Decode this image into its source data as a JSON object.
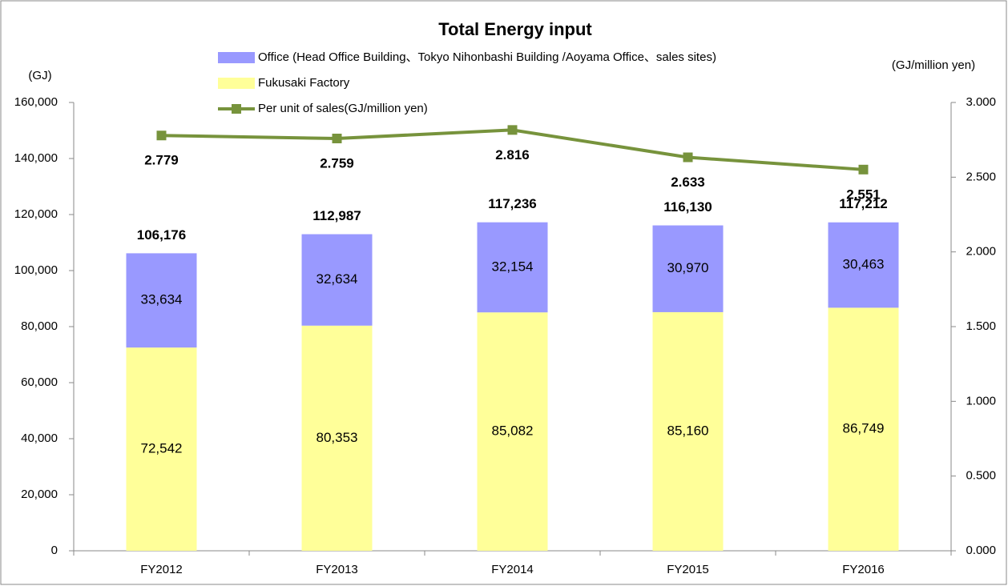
{
  "chart_data": {
    "type": "bar",
    "title": "Total  Energy  input",
    "ylabel": "(GJ)",
    "y2label": "(GJ/million yen)",
    "categories": [
      "FY2012",
      "FY2013",
      "FY2014",
      "FY2015",
      "FY2016"
    ],
    "stacked": true,
    "series": [
      {
        "name": "Office (Head Office Building、Tokyo Nihonbashi Building /Aoyama Office、sales sites)",
        "color": "#9999ff",
        "type": "bar",
        "values": [
          33634,
          32634,
          32154,
          30970,
          30463
        ],
        "value_labels": [
          "33,634",
          "32,634",
          "32,154",
          "30,970",
          "30,463"
        ]
      },
      {
        "name": "Fukusaki Factory",
        "color": "#ffff99",
        "type": "bar",
        "values": [
          72542,
          80353,
          85082,
          85160,
          86749
        ],
        "value_labels": [
          "72,542",
          "80,353",
          "85,082",
          "85,160",
          "86,749"
        ]
      },
      {
        "name": "Per unit of sales(GJ/million yen)",
        "color": "#77933c",
        "type": "line",
        "axis": "y2",
        "values": [
          2.779,
          2.759,
          2.816,
          2.633,
          2.551
        ]
      }
    ],
    "totals": {
      "values": [
        106176,
        112987,
        117236,
        116130,
        117212
      ],
      "value_labels": [
        "106,176",
        "112,987",
        "117,236",
        "116,130",
        "117,212"
      ]
    },
    "ylim": [
      0,
      160000
    ],
    "yticks": [
      0,
      {
        "value": 20000,
        "label": "20,000"
      },
      {
        "value": 40000,
        "label": "40,000"
      },
      {
        "value": 60000,
        "label": "60,000"
      },
      {
        "value": 80000,
        "label": "80,000"
      },
      {
        "value": 100000,
        "label": "100,000"
      },
      {
        "value": 120000,
        "label": "120,000"
      },
      {
        "value": 140000,
        "label": "140,000"
      },
      {
        "value": 160000,
        "label": "160,000"
      }
    ],
    "y2lim": [
      0,
      3
    ],
    "y2ticks": [
      {
        "value": 0,
        "label": "0.000"
      },
      {
        "value": 0.5,
        "label": "0.500"
      },
      {
        "value": 1,
        "label": "1.000"
      },
      {
        "value": 1.5,
        "label": "1.500"
      },
      {
        "value": 2,
        "label": "2.000"
      },
      {
        "value": 2.5,
        "label": "2.500"
      },
      {
        "value": 3,
        "label": "3.000"
      }
    ],
    "grid": false
  }
}
